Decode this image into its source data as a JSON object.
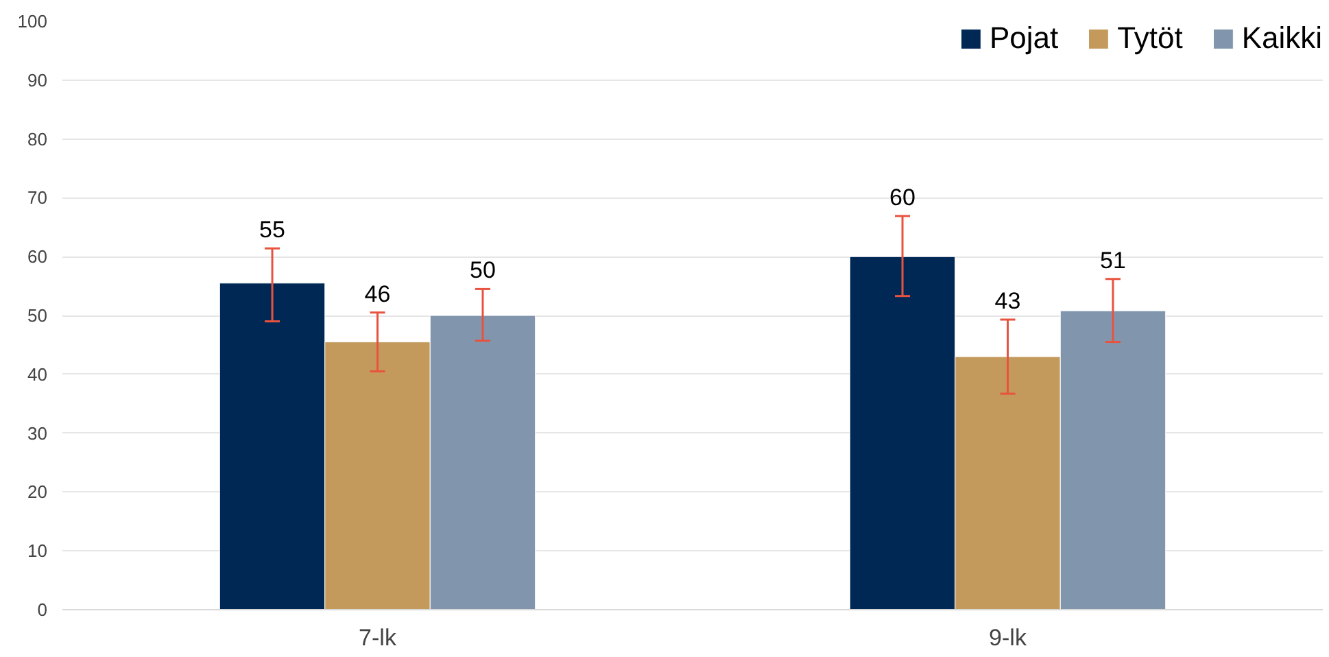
{
  "chart_data": {
    "type": "bar",
    "categories": [
      "7-lk",
      "9-lk"
    ],
    "series": [
      {
        "name": "Pojat",
        "color": "#002855",
        "values": [
          55.5,
          60
        ],
        "value_labels": [
          "55",
          "60"
        ],
        "errors": [
          [
            49.0,
            61.4
          ],
          [
            53.3,
            66.9
          ]
        ]
      },
      {
        "name": "Tytöt",
        "color": "#c39a5c",
        "values": [
          45.5,
          43
        ],
        "value_labels": [
          "46",
          "43"
        ],
        "errors": [
          [
            40.5,
            50.5
          ],
          [
            36.7,
            49.3
          ]
        ]
      },
      {
        "name": "Kaikki",
        "color": "#8196ad",
        "values": [
          50,
          50.8
        ],
        "value_labels": [
          "50",
          "51"
        ],
        "errors": [
          [
            45.7,
            54.5
          ],
          [
            45.5,
            56.2
          ]
        ]
      }
    ],
    "ylim": [
      0,
      100
    ],
    "yticks": [
      0,
      10,
      20,
      30,
      40,
      50,
      60,
      70,
      80,
      90,
      100
    ],
    "grid": "y",
    "legend": "top right"
  }
}
